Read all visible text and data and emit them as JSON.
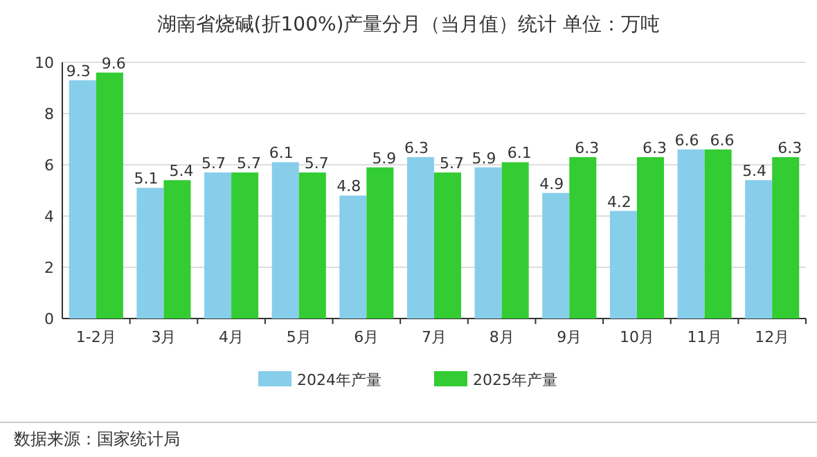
{
  "chart_data": {
    "type": "bar",
    "title": "湖南省烧碱(折100%)产量分月（当月值）统计  单位：万吨",
    "categories": [
      "1-2月",
      "3月",
      "4月",
      "5月",
      "6月",
      "7月",
      "8月",
      "9月",
      "10月",
      "11月",
      "12月"
    ],
    "series": [
      {
        "name": "2024年产量",
        "color": "#87ceeb",
        "values": [
          9.3,
          5.1,
          5.7,
          6.1,
          4.8,
          6.3,
          5.9,
          4.9,
          4.2,
          6.6,
          5.4
        ]
      },
      {
        "name": "2025年产量",
        "color": "#33cc33",
        "values": [
          9.6,
          5.4,
          5.7,
          5.7,
          5.9,
          5.7,
          6.1,
          6.3,
          6.3,
          6.6,
          6.3
        ]
      }
    ],
    "ylim": [
      0,
      10
    ],
    "yticks": [
      0,
      2,
      4,
      6,
      8,
      10
    ],
    "grid": "y",
    "legend": "bottom",
    "data_labels": true,
    "annotations": [
      "数据来源：国家统计局"
    ]
  }
}
